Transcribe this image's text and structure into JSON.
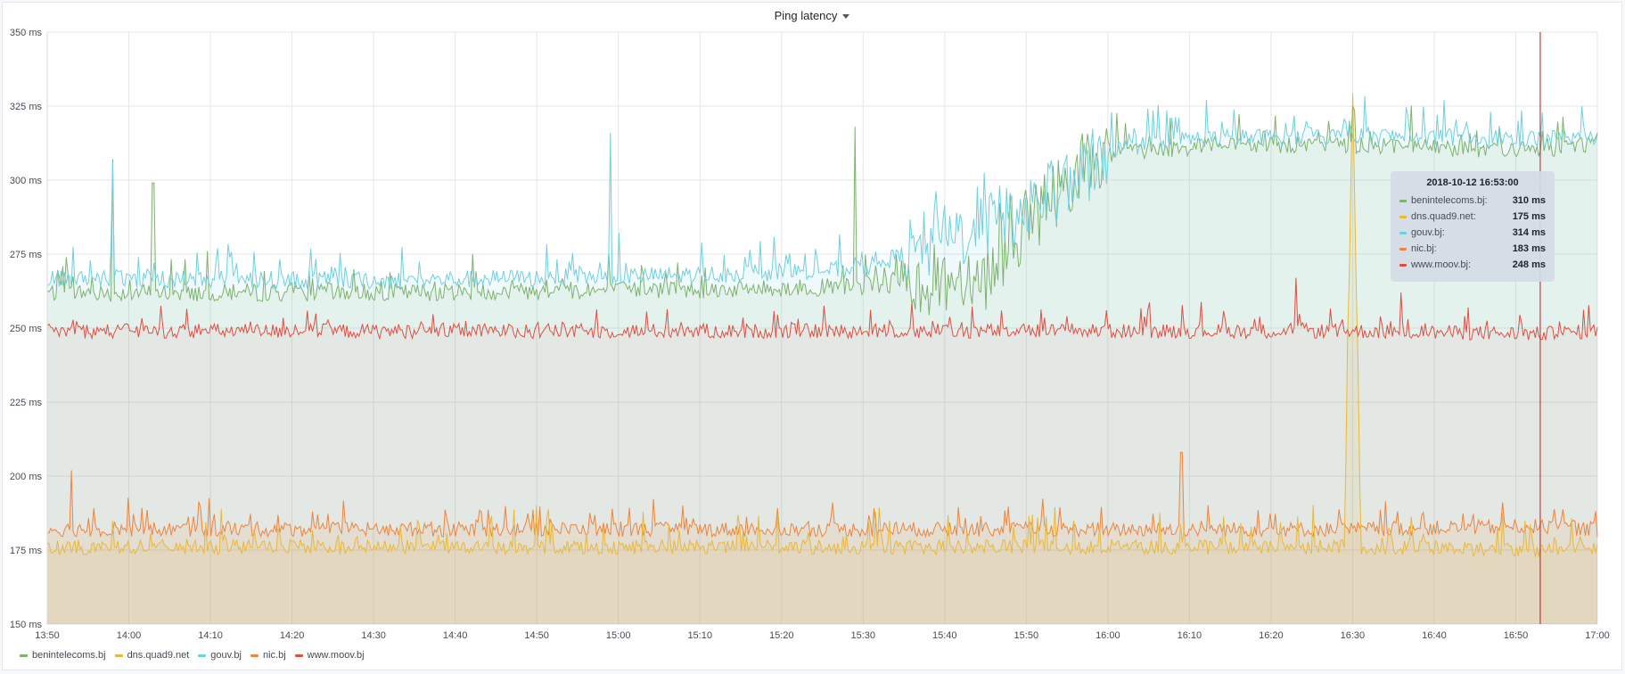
{
  "panel": {
    "title": "Ping latency"
  },
  "tooltip": {
    "time": "2018-10-12 16:53:00",
    "rows": [
      {
        "name": "benintelecoms.bj:",
        "value": "310 ms",
        "color": "#7eb26d"
      },
      {
        "name": "dns.quad9.net:",
        "value": "175 ms",
        "color": "#eab839"
      },
      {
        "name": "gouv.bj:",
        "value": "314 ms",
        "color": "#6ed0e0"
      },
      {
        "name": "nic.bj:",
        "value": "183 ms",
        "color": "#ef843c"
      },
      {
        "name": "www.moov.bj:",
        "value": "248 ms",
        "color": "#e24d42"
      }
    ]
  },
  "chart_data": {
    "type": "area",
    "title": "Ping latency",
    "ylabel": "",
    "xlabel": "",
    "ylim": [
      150,
      350
    ],
    "y_unit": "ms",
    "y_ticks": [
      "150 ms",
      "175 ms",
      "200 ms",
      "225 ms",
      "250 ms",
      "275 ms",
      "300 ms",
      "325 ms",
      "350 ms"
    ],
    "x_ticks": [
      "13:50",
      "14:00",
      "14:10",
      "14:20",
      "14:30",
      "14:40",
      "14:50",
      "15:00",
      "15:10",
      "15:20",
      "15:30",
      "15:40",
      "15:50",
      "16:00",
      "16:10",
      "16:20",
      "16:30",
      "16:40",
      "16:50",
      "17:00"
    ],
    "xlim": [
      "13:50",
      "17:00"
    ],
    "grid": true,
    "legend_position": "bottom-left",
    "cursor_time": "16:53",
    "series": [
      {
        "name": "benintelecoms.bj",
        "color": "#7eb26d",
        "x": [
          "13:50",
          "14:30",
          "15:10",
          "15:30",
          "15:45",
          "15:50",
          "15:55",
          "16:00",
          "16:10",
          "16:30",
          "16:53",
          "17:00"
        ],
        "values": [
          262,
          262,
          263,
          264,
          268,
          285,
          300,
          309,
          311,
          312,
          310,
          313
        ],
        "spikes": [
          {
            "x": "13:58",
            "value": 307
          },
          {
            "x": "14:03",
            "value": 299
          },
          {
            "x": "15:29",
            "value": 318
          }
        ]
      },
      {
        "name": "dns.quad9.net",
        "color": "#eab839",
        "x": [
          "13:50",
          "14:30",
          "15:10",
          "15:50",
          "16:29",
          "16:30",
          "16:31",
          "16:53",
          "17:00"
        ],
        "values": [
          176,
          176,
          176,
          176,
          176,
          335,
          176,
          175,
          176
        ]
      },
      {
        "name": "gouv.bj",
        "color": "#6ed0e0",
        "x": [
          "13:50",
          "14:30",
          "15:10",
          "15:30",
          "15:40",
          "15:50",
          "15:55",
          "16:00",
          "16:10",
          "16:30",
          "16:53",
          "17:00"
        ],
        "values": [
          267,
          266,
          268,
          270,
          280,
          290,
          298,
          310,
          314,
          315,
          314,
          315
        ],
        "spikes": [
          {
            "x": "13:58",
            "value": 306
          },
          {
            "x": "14:59",
            "value": 316
          }
        ]
      },
      {
        "name": "nic.bj",
        "color": "#ef843c",
        "x": [
          "13:50",
          "14:30",
          "15:10",
          "15:50",
          "16:30",
          "16:53",
          "17:00"
        ],
        "values": [
          182,
          182,
          182,
          182,
          182,
          183,
          182
        ],
        "spikes": [
          {
            "x": "13:53",
            "value": 202
          },
          {
            "x": "16:09",
            "value": 208
          }
        ]
      },
      {
        "name": "www.moov.bj",
        "color": "#e24d42",
        "x": [
          "13:50",
          "14:30",
          "15:10",
          "15:50",
          "16:30",
          "16:53",
          "17:00"
        ],
        "values": [
          249,
          249,
          249,
          249,
          249,
          248,
          249
        ],
        "spikes": [
          {
            "x": "16:23",
            "value": 267
          },
          {
            "x": "16:36",
            "value": 262
          }
        ]
      }
    ]
  }
}
